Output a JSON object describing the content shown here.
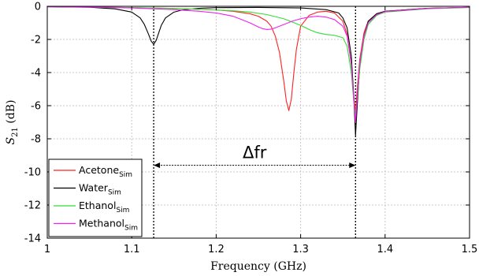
{
  "chart_data": {
    "type": "line",
    "xlabel": "Frequency (GHz)",
    "ylabel_main": "S",
    "ylabel_sub": "21",
    "ylabel_unit": " (dB)",
    "xlim": [
      1,
      1.5
    ],
    "ylim": [
      -14,
      0
    ],
    "xticks": [
      1,
      1.1,
      1.2,
      1.3,
      1.4,
      1.5
    ],
    "xtick_labels": [
      "1",
      "1.1",
      "1.2",
      "1.3",
      "1.4",
      "1.5"
    ],
    "yticks": [
      0,
      -2,
      -4,
      -6,
      -8,
      -10,
      -12,
      -14
    ],
    "ytick_labels": [
      "0",
      "-2",
      "-4",
      "-6",
      "-8",
      "-10",
      "-12",
      "-14"
    ],
    "grid": true,
    "legend_position": "bottom-left",
    "annotation": {
      "text": "Δfr",
      "from_x": 1.126,
      "to_x": 1.365,
      "y": -9.6
    },
    "vlines": [
      1.126,
      1.365
    ],
    "series": [
      {
        "name": "Acetone",
        "name_sub": "Sim",
        "color": "#ff2020",
        "x": [
          1.0,
          1.05,
          1.1,
          1.15,
          1.2,
          1.22,
          1.24,
          1.25,
          1.26,
          1.265,
          1.27,
          1.275,
          1.28,
          1.283,
          1.286,
          1.289,
          1.292,
          1.295,
          1.3,
          1.31,
          1.32,
          1.33,
          1.34,
          1.35,
          1.355,
          1.36,
          1.363,
          1.365,
          1.367,
          1.37,
          1.375,
          1.38,
          1.39,
          1.4,
          1.45,
          1.5
        ],
        "y": [
          -0.02,
          -0.04,
          -0.08,
          -0.13,
          -0.22,
          -0.3,
          -0.45,
          -0.6,
          -0.9,
          -1.2,
          -1.8,
          -2.8,
          -4.5,
          -5.7,
          -6.3,
          -5.6,
          -4.0,
          -2.6,
          -1.2,
          -0.55,
          -0.35,
          -0.3,
          -0.4,
          -0.9,
          -1.7,
          -3.5,
          -5.5,
          -6.4,
          -5.0,
          -3.2,
          -1.6,
          -0.9,
          -0.45,
          -0.3,
          -0.12,
          -0.07
        ]
      },
      {
        "name": "Water",
        "name_sub": "Sim",
        "color": "#000000",
        "x": [
          1.0,
          1.05,
          1.08,
          1.1,
          1.11,
          1.115,
          1.12,
          1.123,
          1.126,
          1.129,
          1.132,
          1.135,
          1.14,
          1.15,
          1.16,
          1.18,
          1.2,
          1.25,
          1.3,
          1.33,
          1.345,
          1.35,
          1.355,
          1.36,
          1.363,
          1.365,
          1.367,
          1.37,
          1.375,
          1.38,
          1.39,
          1.4,
          1.45,
          1.5
        ],
        "y": [
          -0.03,
          -0.06,
          -0.15,
          -0.35,
          -0.7,
          -1.1,
          -1.7,
          -2.1,
          -2.3,
          -2.05,
          -1.6,
          -1.15,
          -0.7,
          -0.35,
          -0.22,
          -0.12,
          -0.08,
          -0.07,
          -0.1,
          -0.2,
          -0.4,
          -0.7,
          -1.3,
          -3.0,
          -5.5,
          -7.8,
          -6.0,
          -3.6,
          -1.8,
          -0.9,
          -0.45,
          -0.3,
          -0.12,
          -0.06
        ]
      },
      {
        "name": "Ethanol",
        "name_sub": "Sim",
        "color": "#33dd33",
        "x": [
          1.0,
          1.05,
          1.1,
          1.15,
          1.2,
          1.22,
          1.24,
          1.26,
          1.28,
          1.3,
          1.31,
          1.32,
          1.33,
          1.34,
          1.35,
          1.355,
          1.36,
          1.363,
          1.365,
          1.367,
          1.37,
          1.375,
          1.38,
          1.39,
          1.4,
          1.45,
          1.5
        ],
        "y": [
          -0.02,
          -0.04,
          -0.08,
          -0.13,
          -0.22,
          -0.27,
          -0.35,
          -0.5,
          -0.75,
          -1.15,
          -1.4,
          -1.6,
          -1.7,
          -1.75,
          -1.9,
          -2.4,
          -4.0,
          -5.8,
          -6.6,
          -5.6,
          -3.8,
          -2.0,
          -1.1,
          -0.55,
          -0.35,
          -0.15,
          -0.07
        ]
      },
      {
        "name": "Methanol",
        "name_sub": "Sim",
        "color": "#ee22ee",
        "x": [
          1.0,
          1.05,
          1.1,
          1.15,
          1.18,
          1.2,
          1.22,
          1.23,
          1.24,
          1.25,
          1.255,
          1.26,
          1.265,
          1.27,
          1.28,
          1.29,
          1.3,
          1.31,
          1.32,
          1.33,
          1.34,
          1.35,
          1.355,
          1.36,
          1.363,
          1.365,
          1.367,
          1.37,
          1.375,
          1.38,
          1.39,
          1.4,
          1.45,
          1.5
        ],
        "y": [
          -0.02,
          -0.05,
          -0.1,
          -0.2,
          -0.3,
          -0.4,
          -0.6,
          -0.8,
          -1.0,
          -1.25,
          -1.35,
          -1.4,
          -1.38,
          -1.3,
          -1.1,
          -0.9,
          -0.75,
          -0.65,
          -0.6,
          -0.65,
          -0.8,
          -1.2,
          -1.8,
          -3.5,
          -5.6,
          -7.0,
          -5.4,
          -3.4,
          -1.8,
          -1.0,
          -0.5,
          -0.32,
          -0.13,
          -0.06
        ]
      }
    ]
  }
}
